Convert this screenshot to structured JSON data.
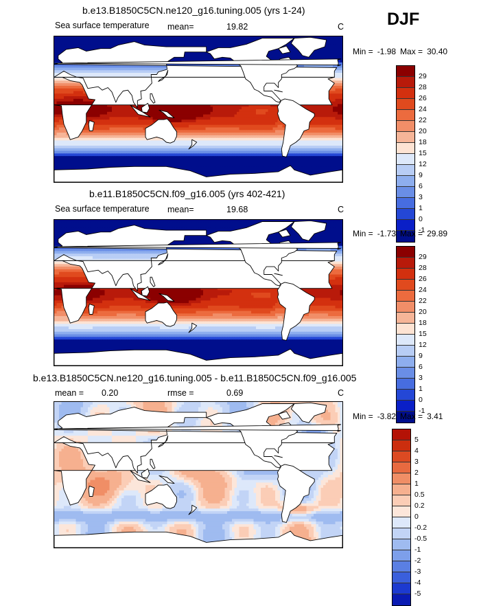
{
  "season": "DJF",
  "panels": [
    {
      "title": "b.e13.B1850C5CN.ne120_g16.tuning.005 (yrs 1-24)",
      "variable": "Sea surface temperature",
      "stat1_label": "mean=",
      "stat1_value": "19.82",
      "units": "C",
      "min_label": "Min =",
      "min_value": "-1.98",
      "max_label": "Max =",
      "max_value": "30.40",
      "levels": [
        "29",
        "28",
        "26",
        "24",
        "22",
        "20",
        "18",
        "15",
        "12",
        "9",
        "6",
        "3",
        "1",
        "0",
        "-1"
      ],
      "colors": [
        "#8b0000",
        "#b81a0a",
        "#d3300f",
        "#e04a1e",
        "#ec6b3e",
        "#f18e68",
        "#f6b598",
        "#fde3d3",
        "#dde8fa",
        "#b8cdf5",
        "#8eaeee",
        "#6a8ee6",
        "#476de0",
        "#2447d6",
        "#0a1fc7",
        "#000e8c"
      ],
      "map_mode": "mean1"
    },
    {
      "title": "b.e11.B1850C5CN.f09_g16.005 (yrs 402-421)",
      "variable": "Sea surface temperature",
      "stat1_label": "mean=",
      "stat1_value": "19.68",
      "units": "C",
      "min_label": "Min =",
      "min_value": "-1.73",
      "max_label": "Max =",
      "max_value": "29.89",
      "levels": [
        "29",
        "28",
        "26",
        "24",
        "22",
        "20",
        "18",
        "15",
        "12",
        "9",
        "6",
        "3",
        "1",
        "0",
        "-1"
      ],
      "colors": [
        "#8b0000",
        "#b81a0a",
        "#d3300f",
        "#e04a1e",
        "#ec6b3e",
        "#f18e68",
        "#f6b598",
        "#fde3d3",
        "#dde8fa",
        "#b8cdf5",
        "#8eaeee",
        "#6a8ee6",
        "#476de0",
        "#2447d6",
        "#0a1fc7",
        "#000e8c"
      ],
      "map_mode": "mean2"
    },
    {
      "title": "b.e13.B1850C5CN.ne120_g16.tuning.005 - b.e11.B1850C5CN.f09_g16.005",
      "variable": "",
      "stat1_label": "mean =",
      "stat1_value": "0.20",
      "stat2_label": "rmse =",
      "stat2_value": "0.69",
      "units": "C",
      "min_label": "Min =",
      "min_value": "-3.82",
      "max_label": "Max =",
      "max_value": "3.41",
      "levels": [
        "5",
        "4",
        "3",
        "2",
        "1",
        "0.5",
        "0.2",
        "0",
        "-0.2",
        "-0.5",
        "-1",
        "-2",
        "-3",
        "-4",
        "-5"
      ],
      "colors": [
        "#b41206",
        "#cc2e0e",
        "#dc4a22",
        "#e86a40",
        "#f08e66",
        "#f6b08f",
        "#fbcdb6",
        "#fce6da",
        "#dde8fa",
        "#c2d4f6",
        "#9fbbf0",
        "#7d9fea",
        "#5a7fe3",
        "#3a5fdc",
        "#1c3ad0",
        "#0a1bb3"
      ],
      "map_mode": "diff"
    }
  ]
}
